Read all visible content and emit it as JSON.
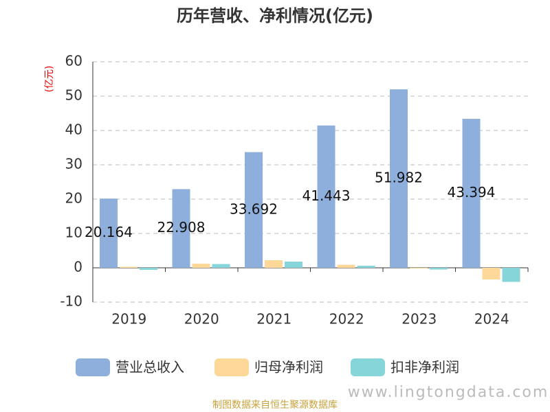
{
  "chart_data": {
    "type": "bar",
    "title": "历年营收、净利情况(亿元)",
    "y_label": "(亿元)",
    "categories": [
      "2019",
      "2020",
      "2021",
      "2022",
      "2023",
      "2024"
    ],
    "series": [
      {
        "name": "营业总收入",
        "color": "#8eaedb",
        "values": [
          20.164,
          22.908,
          33.692,
          41.443,
          51.982,
          43.394
        ],
        "show_labels": true
      },
      {
        "name": "归母净利润",
        "color": "#fdd898",
        "values": [
          0.3,
          1.2,
          2.2,
          0.9,
          -0.2,
          -3.4
        ],
        "show_labels": false
      },
      {
        "name": "扣非净利润",
        "color": "#86d5d8",
        "values": [
          -0.6,
          1.1,
          1.8,
          0.6,
          -0.5,
          -4.1
        ],
        "show_labels": false
      }
    ],
    "ylim": [
      -10,
      60
    ],
    "yticks": [
      -10,
      0,
      10,
      20,
      30,
      40,
      50,
      60
    ],
    "grid": true,
    "source": "制图数据来自恒生聚源数据库",
    "watermark": "www.lingtongdata.com"
  }
}
